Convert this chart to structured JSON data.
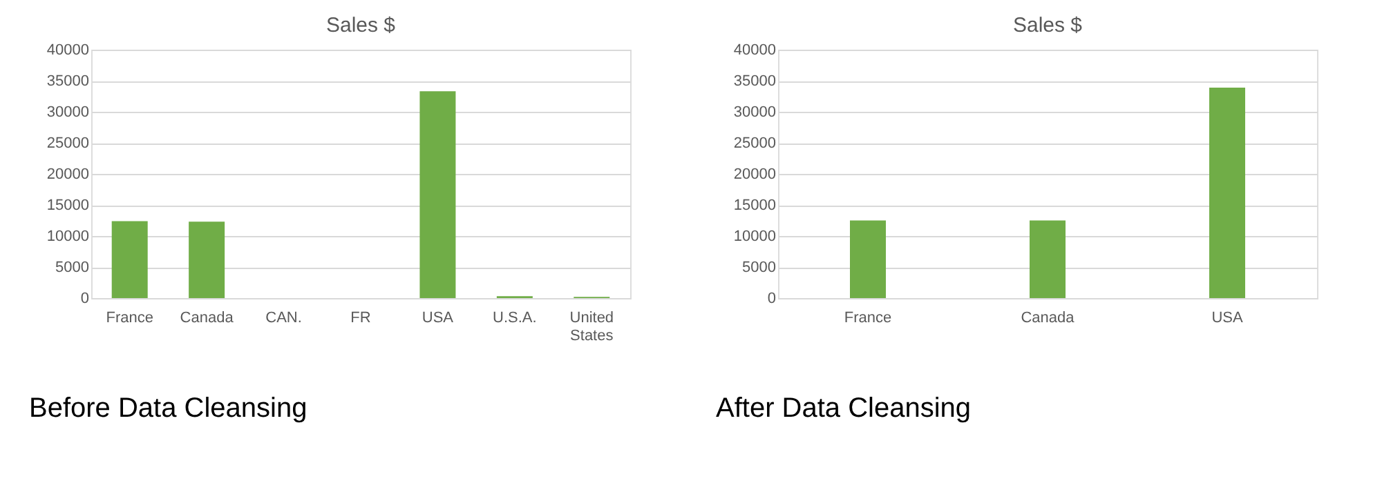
{
  "chart_data": [
    {
      "type": "bar",
      "title": "Sales $",
      "categories": [
        "France",
        "Canada",
        "CAN.",
        "FR",
        "USA",
        "U.S.A.",
        "United States"
      ],
      "values": [
        12400,
        12300,
        0,
        0,
        33300,
        300,
        200
      ],
      "color": "#70ad47",
      "ylim": [
        0,
        40000
      ],
      "yticks": [
        0,
        5000,
        10000,
        15000,
        20000,
        25000,
        30000,
        35000,
        40000
      ],
      "grid": "y",
      "annotations": [
        "Before Data Cleansing"
      ]
    },
    {
      "type": "bar",
      "title": "Sales $",
      "categories": [
        "France",
        "Canada",
        "USA"
      ],
      "values": [
        12500,
        12500,
        33900
      ],
      "color": "#70ad47",
      "ylim": [
        0,
        40000
      ],
      "yticks": [
        0,
        5000,
        10000,
        15000,
        20000,
        25000,
        30000,
        35000,
        40000
      ],
      "grid": "y",
      "annotations": [
        "After Data Cleansing"
      ]
    }
  ]
}
